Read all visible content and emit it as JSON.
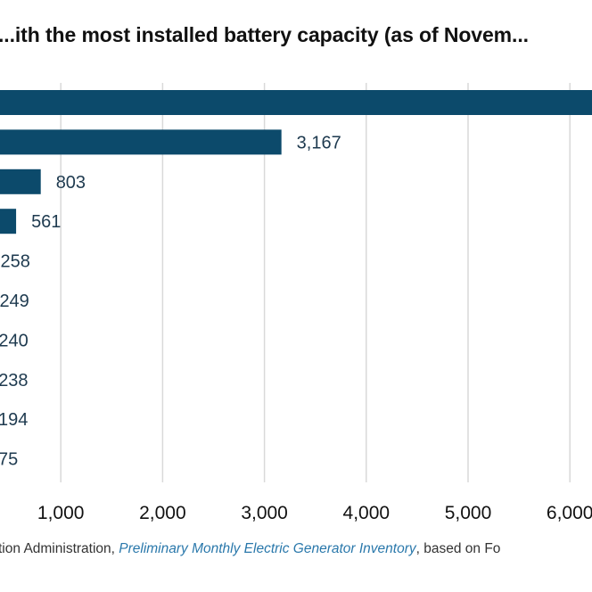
{
  "chart_data": {
    "type": "bar",
    "orientation": "horizontal",
    "title": "...ith the most installed battery capacity (as of Novem...",
    "xlabel": "",
    "ylabel": "",
    "categories": [
      "",
      "",
      "",
      "",
      "",
      "",
      "",
      "",
      "",
      ""
    ],
    "values": [
      6500,
      3167,
      803,
      561,
      258,
      249,
      240,
      238,
      194,
      75
    ],
    "value_labels": [
      "",
      "3,167",
      "803",
      "561",
      "258",
      "249",
      "240",
      "238",
      "194",
      "75"
    ],
    "x_ticks": [
      1000,
      2000,
      3000,
      4000,
      5000,
      6000
    ],
    "x_tick_labels": [
      "1,000",
      "2,000",
      "3,000",
      "4,000",
      "5,000",
      "6,000"
    ],
    "xlim": [
      0,
      6500
    ],
    "grid": "vertical",
    "legend": "none",
    "bar_color": "#0c4a6b",
    "label_color": "#1e3a4f",
    "gridline_color": "#d9d9d9"
  },
  "footnote": {
    "prefix": "tion Administration, ",
    "link_text": "Preliminary Monthly Electric Generator Inventory",
    "suffix": ", based on Fo"
  }
}
